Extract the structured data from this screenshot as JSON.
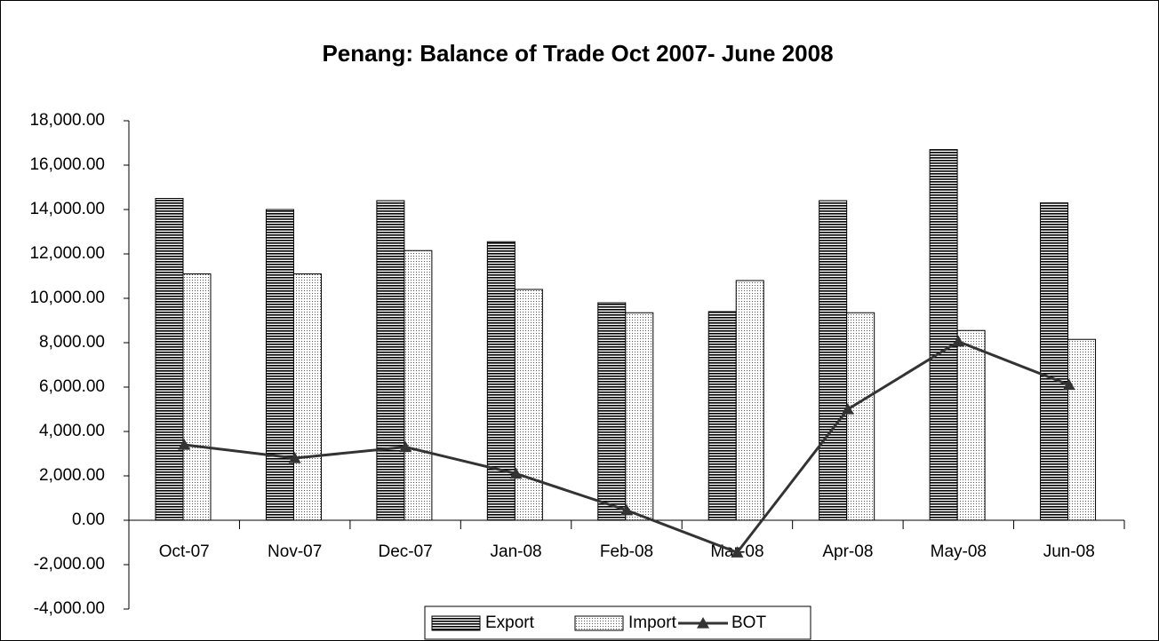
{
  "chart_data": {
    "type": "bar_line",
    "title": "Penang: Balance of Trade Oct 2007- June 2008",
    "categories": [
      "Oct-07",
      "Nov-07",
      "Dec-07",
      "Jan-08",
      "Feb-08",
      "Mar-08",
      "Apr-08",
      "May-08",
      "Jun-08"
    ],
    "series": [
      {
        "name": "Export",
        "type": "bar",
        "color": "#000000",
        "pattern": "horizontal-lines",
        "values": [
          14500,
          14000,
          14400,
          12550,
          9800,
          9400,
          14400,
          16700,
          14300
        ]
      },
      {
        "name": "Import",
        "type": "bar",
        "color": "#000000",
        "pattern": "dots",
        "values": [
          11100,
          11100,
          12150,
          10400,
          9350,
          10800,
          9350,
          8550,
          8150
        ]
      },
      {
        "name": "BOT",
        "type": "line",
        "color": "#333333",
        "marker": "triangle",
        "values": [
          3400,
          2800,
          3300,
          2100,
          450,
          -1450,
          5000,
          8050,
          6100
        ]
      }
    ],
    "ylim": [
      -4000,
      18000
    ],
    "yticks": [
      {
        "value": -4000,
        "label": "-4,000.00"
      },
      {
        "value": -2000,
        "label": "-2,000.00"
      },
      {
        "value": 0,
        "label": "0.00"
      },
      {
        "value": 2000,
        "label": "2,000.00"
      },
      {
        "value": 4000,
        "label": "4,000.00"
      },
      {
        "value": 6000,
        "label": "6,000.00"
      },
      {
        "value": 8000,
        "label": "8,000.00"
      },
      {
        "value": 10000,
        "label": "10,000.00"
      },
      {
        "value": 12000,
        "label": "12,000.00"
      },
      {
        "value": 14000,
        "label": "14,000.00"
      },
      {
        "value": 16000,
        "label": "16,000.00"
      },
      {
        "value": 18000,
        "label": "18,000.00"
      }
    ],
    "grid": false,
    "legend": "bottom"
  }
}
